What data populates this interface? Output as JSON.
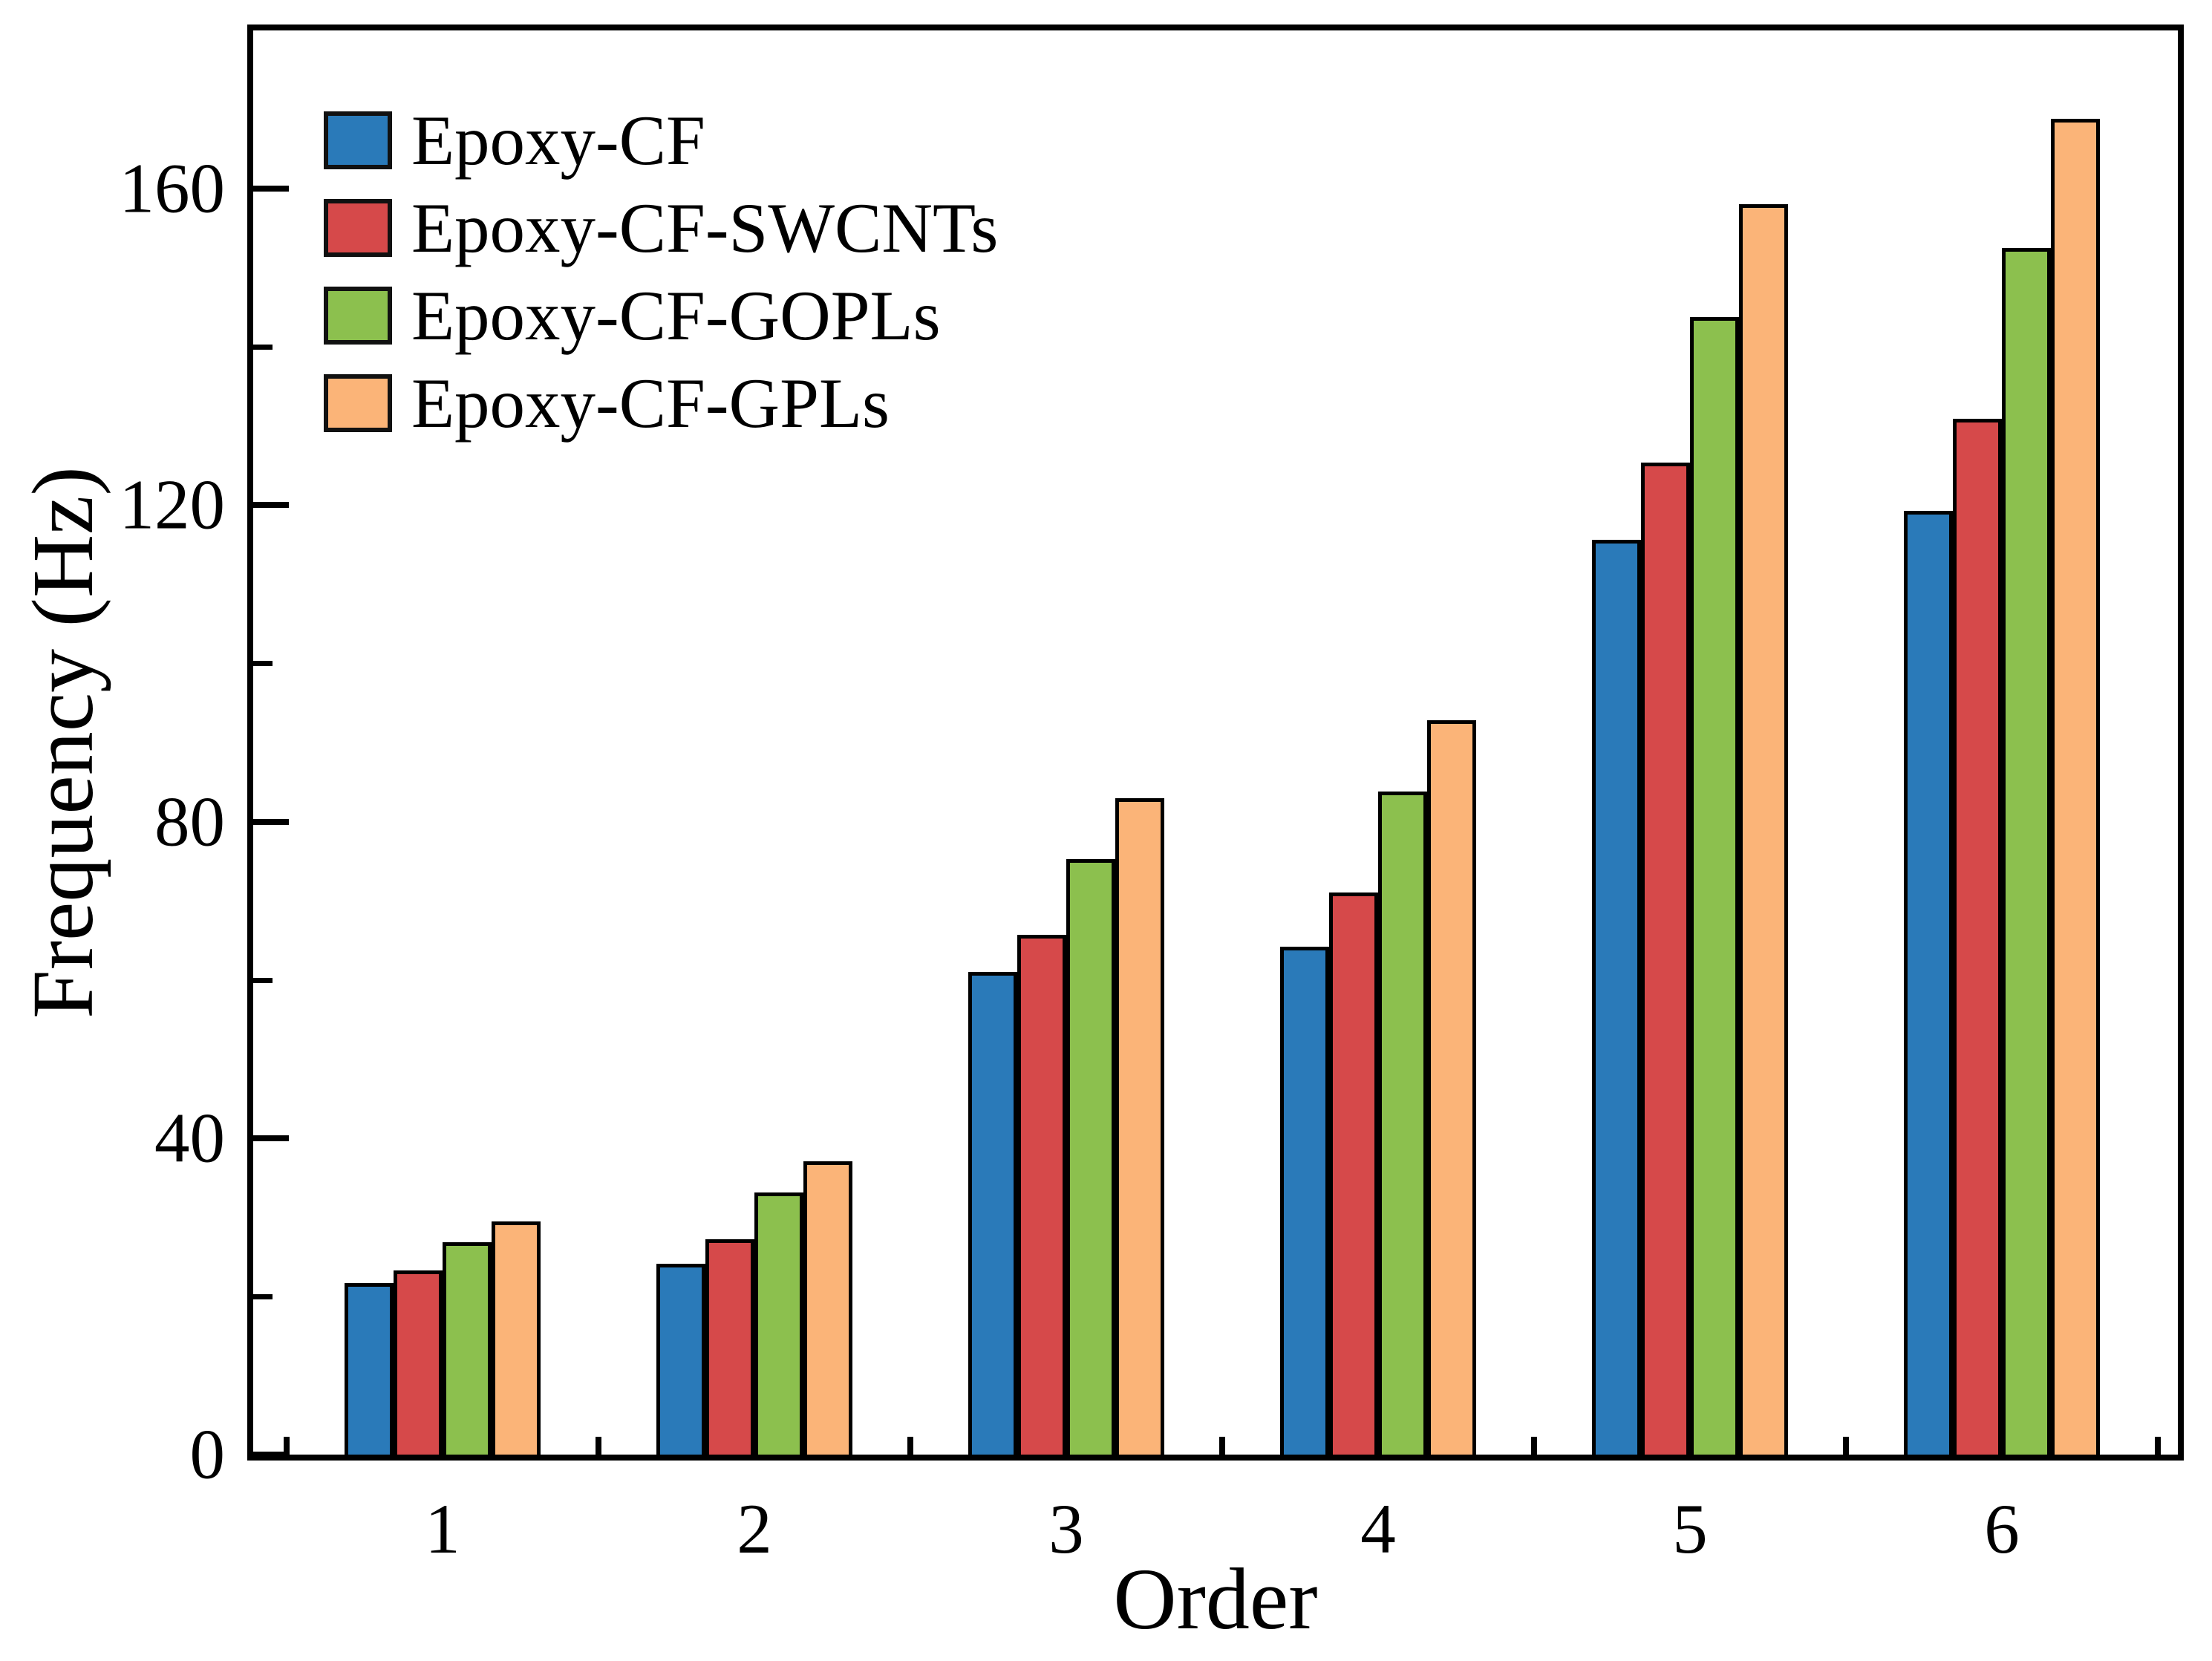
{
  "chart_data": {
    "type": "bar",
    "title": "",
    "xlabel": "Order",
    "ylabel": "Frequency (Hz)",
    "categories": [
      "1",
      "2",
      "3",
      "4",
      "5",
      "6"
    ],
    "series": [
      {
        "name": "Epoxy-CF",
        "color": "#2a7ab9",
        "values": [
          21.7,
          24.1,
          61.0,
          64.2,
          115.6,
          119.3
        ]
      },
      {
        "name": "Epoxy-CF-SWCNTs",
        "color": "#d6494a",
        "values": [
          23.3,
          27.2,
          65.7,
          71.0,
          125.4,
          130.9
        ]
      },
      {
        "name": "Epoxy-CF-GOPLs",
        "color": "#8cc04e",
        "values": [
          26.8,
          33.1,
          75.3,
          83.8,
          143.8,
          152.5
        ]
      },
      {
        "name": "Epoxy-CF-GPLs",
        "color": "#fbb478",
        "values": [
          29.5,
          37.1,
          83.0,
          92.8,
          158.0,
          168.8
        ]
      }
    ],
    "ylim": [
      0,
      180
    ],
    "y_major_ticks": [
      0,
      40,
      80,
      120,
      160
    ],
    "y_minor_ticks": [
      20,
      60,
      100,
      140
    ],
    "legend_position": "upper-left",
    "grid": false,
    "frame": true,
    "axis_color": "#000000"
  }
}
